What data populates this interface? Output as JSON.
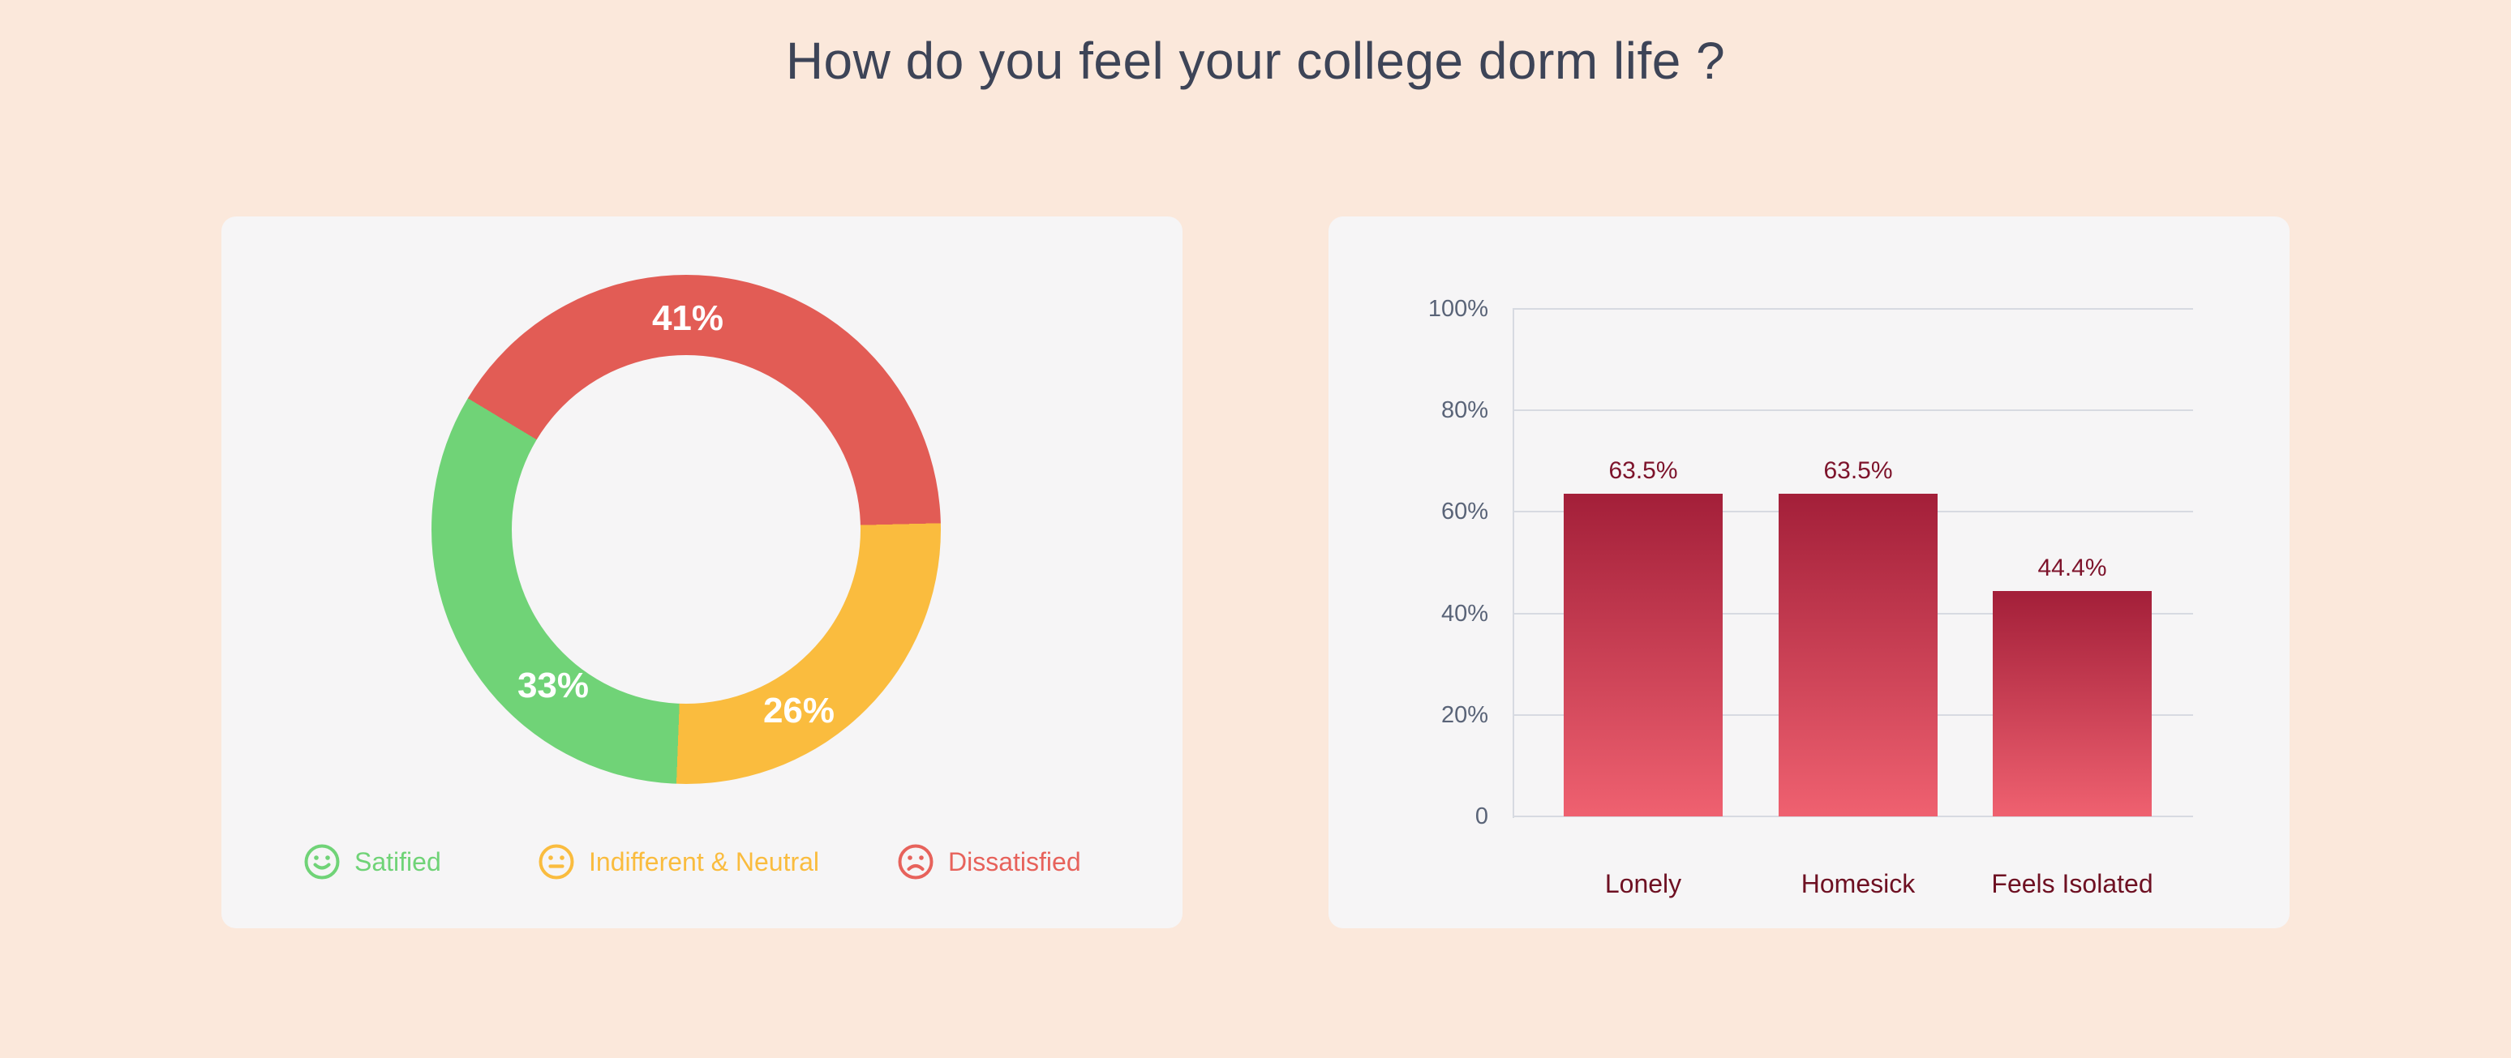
{
  "title": "How do you feel your college dorm life ?",
  "theme": {
    "background": "#fbe8db",
    "card_background": "#f6f5f6",
    "title_color": "#3d4457",
    "grid_color": "#d7dae1",
    "axis_label_color": "#5a6478",
    "bar_top": "#a31f39",
    "bar_bottom": "#ef6170",
    "bar_value_color": "#7d132b",
    "bar_category_color": "#6e1022",
    "donut_label_color": "#ffffff",
    "satisfied_color": "#70d377",
    "neutral_color": "#fabc3e",
    "dissatisfied_color": "#e7625b"
  },
  "chart_data": [
    {
      "type": "pie",
      "variant": "donut",
      "start_angle_deg": -59,
      "slices": [
        {
          "label": "Dissatisfied",
          "value": 41,
          "display": "41%",
          "color": "#e25c55"
        },
        {
          "label": "Indifferent & Neutral",
          "value": 26,
          "display": "26%",
          "color": "#fabc3e"
        },
        {
          "label": "Satified",
          "value": 33,
          "display": "33%",
          "color": "#70d377"
        }
      ],
      "legend_position": "bottom",
      "legend": [
        {
          "label": "Satified",
          "icon": "smile-face-icon",
          "color": "#70d377"
        },
        {
          "label": "Indifferent & Neutral",
          "icon": "neutral-face-icon",
          "color": "#fabc3e"
        },
        {
          "label": "Dissatisfied",
          "icon": "frown-face-icon",
          "color": "#e7625b"
        }
      ]
    },
    {
      "type": "bar",
      "categories": [
        "Lonely",
        "Homesick",
        "Feels Isolated"
      ],
      "values": [
        63.5,
        63.5,
        44.4
      ],
      "value_labels": [
        "63.5%",
        "63.5%",
        "44.4%"
      ],
      "ylim": [
        0,
        100
      ],
      "grid": true,
      "yticks": [
        {
          "value": 100,
          "label": "100%"
        },
        {
          "value": 80,
          "label": "80%"
        },
        {
          "value": 60,
          "label": "60%"
        },
        {
          "value": 40,
          "label": "40%"
        },
        {
          "value": 20,
          "label": "20%"
        },
        {
          "value": 0,
          "label": "0"
        }
      ]
    }
  ]
}
